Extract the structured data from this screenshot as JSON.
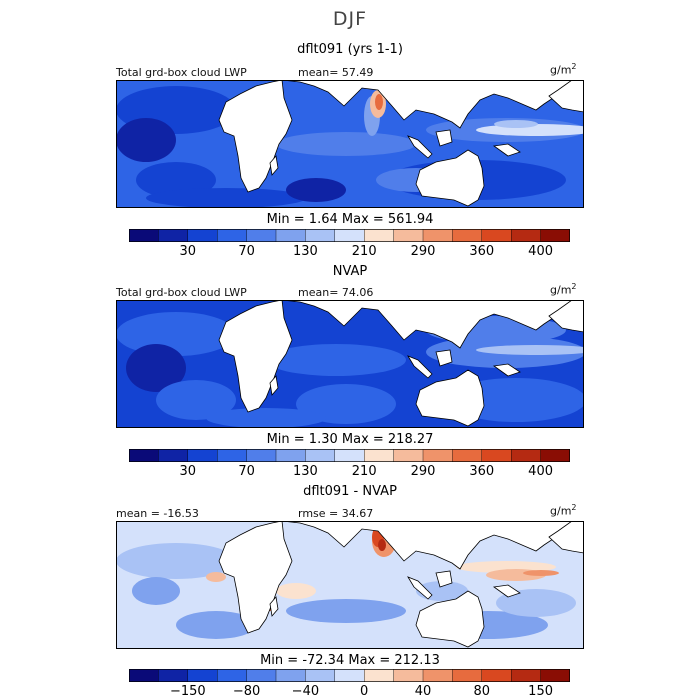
{
  "title": "DJF",
  "panels": [
    {
      "title": "dflt091 (yrs 1-1)",
      "left_label": "Total grd-box cloud LWP",
      "stat_label": "mean=  57.49",
      "unit_base": "g/m",
      "unit_exp": "2",
      "minmax": "Min =    1.64  Max = 561.94",
      "tick_labels": [
        "30",
        "70",
        "130",
        "210",
        "290",
        "360",
        "400"
      ],
      "style": "model"
    },
    {
      "title": "NVAP",
      "left_label": "Total grd-box cloud LWP",
      "stat_label": "mean=  74.06",
      "unit_base": "g/m",
      "unit_exp": "2",
      "minmax": "Min =    1.30  Max = 218.27",
      "tick_labels": [
        "30",
        "70",
        "130",
        "210",
        "290",
        "360",
        "400"
      ],
      "style": "obs"
    },
    {
      "title": "dflt091 - NVAP",
      "left_label": "mean = -16.53",
      "stat_label": "rmse =  34.67",
      "unit_base": "g/m",
      "unit_exp": "2",
      "minmax": "Min = -72.34  Max = 212.13",
      "tick_labels": [
        "−150",
        "−80",
        "−40",
        "0",
        "40",
        "80",
        "150"
      ],
      "style": "diff"
    }
  ],
  "colorbar_colors": [
    "#0a0a78",
    "#0f23a5",
    "#1443d2",
    "#2e64e6",
    "#507eea",
    "#7fa2ee",
    "#a9c2f5",
    "#d4e1fb",
    "#fbe2cf",
    "#f5bb9c",
    "#ef936a",
    "#e76b3e",
    "#d94820",
    "#b52a12",
    "#8a0d04"
  ]
}
